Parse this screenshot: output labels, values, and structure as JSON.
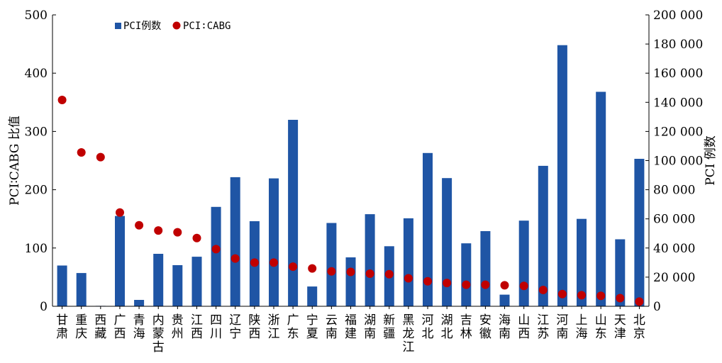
{
  "chart_data": {
    "type": "bar",
    "categories": [
      "甘肃",
      "重庆",
      "西藏",
      "广西",
      "青海",
      "内蒙古",
      "贵州",
      "江西",
      "四川",
      "辽宁",
      "陕西",
      "浙江",
      "广东",
      "宁夏",
      "云南",
      "福建",
      "湖南",
      "新疆",
      "黑龙江",
      "河北",
      "湖北",
      "吉林",
      "安徽",
      "海南",
      "山西",
      "江苏",
      "河南",
      "上海",
      "山东",
      "天津",
      "北京"
    ],
    "series": [
      {
        "name": "PCI例数",
        "type": "bar",
        "axis": "right",
        "color": "#1f55a5",
        "values": [
          28000,
          22800,
          300,
          62000,
          4400,
          36000,
          28200,
          34000,
          68200,
          88600,
          58400,
          87800,
          128000,
          13600,
          57200,
          33600,
          63200,
          41200,
          60400,
          105200,
          88000,
          43200,
          51600,
          8000,
          58800,
          96400,
          179200,
          60000,
          147200,
          46000,
          101200
        ]
      },
      {
        "name": "PCI∶CABG",
        "type": "scatter",
        "axis": "left",
        "color": "#c00000",
        "values": [
          354,
          264,
          256,
          161,
          139,
          130,
          127,
          117,
          98,
          82,
          75,
          75,
          68,
          65,
          60,
          59,
          56,
          55,
          48,
          43,
          40,
          37,
          37,
          36,
          35,
          28,
          21,
          19,
          18,
          14,
          8
        ]
      }
    ],
    "ylabel": "PCI∶CABG 比值",
    "y2label": "PCI 例数",
    "ylim": [
      0,
      500
    ],
    "y2lim": [
      0,
      200000
    ],
    "yticks": [
      "0",
      "100",
      "200",
      "300",
      "400",
      "500"
    ],
    "y2ticks": [
      "0",
      "20 000",
      "40 000",
      "60 000",
      "80 000",
      "100 000",
      "120 000",
      "140 000",
      "160 000",
      "180 000",
      "200 000"
    ],
    "legend_position": "top-left",
    "grid": false
  }
}
